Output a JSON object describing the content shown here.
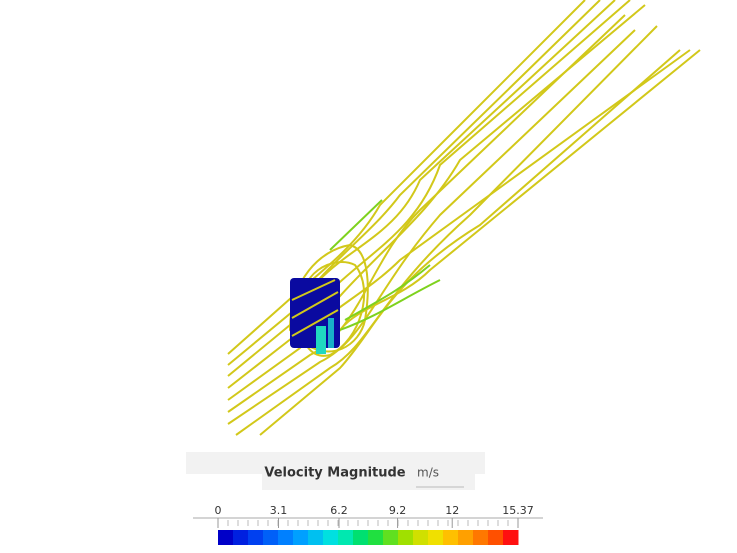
{
  "legend": {
    "title": "Velocity Magnitude",
    "unit": "m/s",
    "range": [
      0,
      15.37
    ],
    "ticks": [
      0,
      3.1,
      6.2,
      9.2,
      12,
      15.37
    ],
    "colors": [
      "#0000c8",
      "#0020e0",
      "#0040f0",
      "#0060f8",
      "#0080ff",
      "#00a0ff",
      "#00c0f0",
      "#00e0e0",
      "#00e8b0",
      "#00e070",
      "#20e040",
      "#60e020",
      "#a0e000",
      "#d0e000",
      "#f0e000",
      "#ffc000",
      "#ffa000",
      "#ff7800",
      "#ff5000",
      "#ff1010"
    ]
  }
}
